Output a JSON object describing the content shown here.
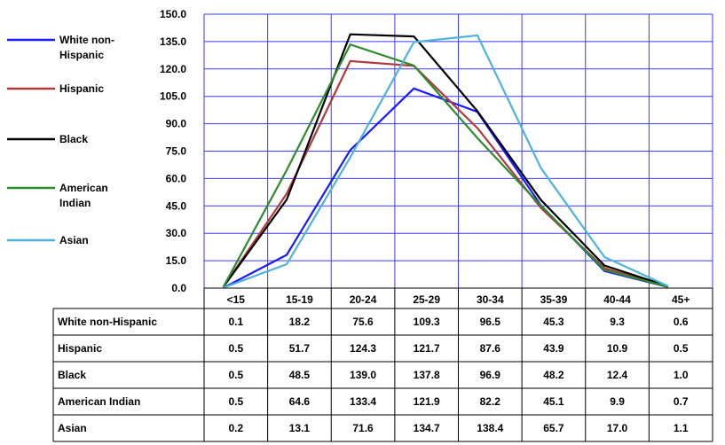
{
  "chart_data": {
    "type": "line",
    "title": "",
    "xlabel": "",
    "ylabel": "",
    "ylim": [
      0,
      150
    ],
    "y_ticks": [
      "0.0",
      "15.0",
      "30.0",
      "45.0",
      "60.0",
      "75.0",
      "90.0",
      "105.0",
      "120.0",
      "135.0",
      "150.0"
    ],
    "grid": true,
    "legend_position": "left",
    "categories": [
      "<15",
      "15-19",
      "20-24",
      "25-29",
      "30-34",
      "35-39",
      "40-44",
      "45+"
    ],
    "series": [
      {
        "name": "White non-Hispanic",
        "legend_lines": [
          "White non-",
          "Hispanic"
        ],
        "color": "#1a1aff",
        "values": [
          0.1,
          18.2,
          75.6,
          109.3,
          96.5,
          45.3,
          9.3,
          0.6
        ],
        "labels": [
          "0.1",
          "18.2",
          "75.6",
          "109.3",
          "96.5",
          "45.3",
          "9.3",
          "0.6"
        ]
      },
      {
        "name": "Hispanic",
        "legend_lines": [
          "Hispanic"
        ],
        "color": "#b03a3a",
        "values": [
          0.5,
          51.7,
          124.3,
          121.7,
          87.6,
          43.9,
          10.9,
          0.5
        ],
        "labels": [
          "0.5",
          "51.7",
          "124.3",
          "121.7",
          "87.6",
          "43.9",
          "10.9",
          "0.5"
        ]
      },
      {
        "name": "Black",
        "legend_lines": [
          "Black"
        ],
        "color": "#000000",
        "values": [
          0.5,
          48.5,
          139.0,
          137.8,
          96.9,
          48.2,
          12.4,
          1.0
        ],
        "labels": [
          "0.5",
          "48.5",
          "139.0",
          "137.8",
          "96.9",
          "48.2",
          "12.4",
          "1.0"
        ]
      },
      {
        "name": "American Indian",
        "legend_lines": [
          "American",
          "Indian"
        ],
        "color": "#2e8b2e",
        "values": [
          0.5,
          64.6,
          133.4,
          121.9,
          82.2,
          45.1,
          9.9,
          0.7
        ],
        "labels": [
          "0.5",
          "64.6",
          "133.4",
          "121.9",
          "82.2",
          "45.1",
          "9.9",
          "0.7"
        ]
      },
      {
        "name": "Asian",
        "legend_lines": [
          "Asian"
        ],
        "color": "#4fb3d9",
        "values": [
          0.2,
          13.1,
          71.6,
          134.7,
          138.4,
          65.7,
          17.0,
          1.1
        ],
        "labels": [
          "0.2",
          "13.1",
          "71.6",
          "134.7",
          "138.4",
          "65.7",
          "17.0",
          "1.1"
        ]
      }
    ],
    "table": {
      "row_headers": [
        "White non-Hispanic",
        "Hispanic",
        "Black",
        "American Indian",
        "Asian"
      ]
    }
  }
}
